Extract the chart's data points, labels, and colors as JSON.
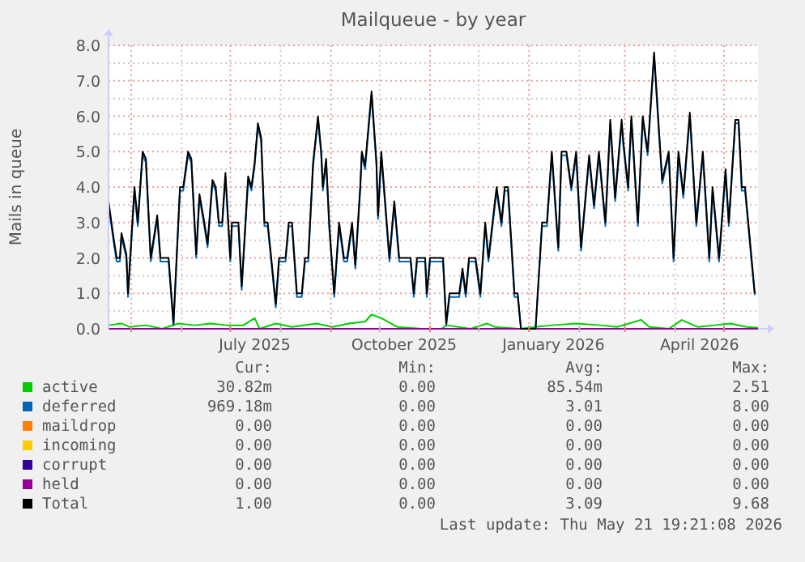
{
  "chart_data": {
    "type": "line",
    "title": "Mailqueue - by year",
    "ylabel": "Mails in queue",
    "xlim": [
      "2025-04-17",
      "2026-05-22"
    ],
    "xticks": [
      {
        "value": "2025-05-01",
        "label": null
      },
      {
        "value": "2025-06-01",
        "label": null
      },
      {
        "value": "2025-07-01",
        "label": null
      },
      {
        "value": "2025-07-16",
        "label": "July 2025"
      },
      {
        "value": "2025-08-01",
        "label": null
      },
      {
        "value": "2025-09-01",
        "label": null
      },
      {
        "value": "2025-10-01",
        "label": null
      },
      {
        "value": "2025-10-16",
        "label": "October 2025"
      },
      {
        "value": "2025-11-01",
        "label": null
      },
      {
        "value": "2025-12-01",
        "label": null
      },
      {
        "value": "2026-01-01",
        "label": null
      },
      {
        "value": "2026-01-16",
        "label": "January 2026"
      },
      {
        "value": "2026-02-01",
        "label": null
      },
      {
        "value": "2026-03-01",
        "label": null
      },
      {
        "value": "2026-04-01",
        "label": null
      },
      {
        "value": "2026-04-16",
        "label": "April 2026"
      },
      {
        "value": "2026-05-01",
        "label": null
      }
    ],
    "ylim": [
      0,
      8
    ],
    "yticks": [
      {
        "value": 0,
        "label": "0.0"
      },
      {
        "value": 1,
        "label": "1.0"
      },
      {
        "value": 2,
        "label": "2.0"
      },
      {
        "value": 3,
        "label": "3.0"
      },
      {
        "value": 4,
        "label": "4.0"
      },
      {
        "value": 5,
        "label": "5.0"
      },
      {
        "value": 6,
        "label": "6.0"
      },
      {
        "value": 7,
        "label": "7.0"
      },
      {
        "value": 8,
        "label": "8.0"
      }
    ],
    "grid": true,
    "legend": "bottom",
    "marker": "none",
    "line_style": "solid",
    "series": [
      {
        "name": "active",
        "color": "#00cc00",
        "x": [
          "2025-04-17",
          "2025-04-25",
          "2025-04-30",
          "2025-05-10",
          "2025-05-20",
          "2025-05-30",
          "2025-06-09",
          "2025-06-19",
          "2025-06-29",
          "2025-07-09",
          "2025-07-16",
          "2025-07-19",
          "2025-07-29",
          "2025-08-08",
          "2025-08-23",
          "2025-09-02",
          "2025-09-12",
          "2025-09-22",
          "2025-09-26",
          "2025-10-02",
          "2025-10-12",
          "2025-10-27",
          "2025-11-08",
          "2025-11-11",
          "2025-11-26",
          "2025-12-06",
          "2025-12-11",
          "2025-12-26",
          "2026-01-05",
          "2026-01-15",
          "2026-01-30",
          "2026-02-14",
          "2026-02-24",
          "2026-03-11",
          "2026-03-16",
          "2026-03-28",
          "2026-04-05",
          "2026-04-15",
          "2026-04-25",
          "2026-05-05",
          "2026-05-15",
          "2026-05-22"
        ],
        "values": [
          0.1,
          0.15,
          0.05,
          0.1,
          0,
          0.15,
          0.1,
          0.15,
          0.1,
          0.1,
          0.3,
          0,
          0.15,
          0.05,
          0.15,
          0.05,
          0.15,
          0.2,
          0.4,
          0.3,
          0.05,
          0,
          0,
          0.1,
          0,
          0.15,
          0.05,
          0,
          0.05,
          0.1,
          0.15,
          0.1,
          0.05,
          0.25,
          0.05,
          0,
          0.25,
          0.05,
          0.1,
          0.15,
          0.05,
          0.03
        ]
      },
      {
        "name": "deferred",
        "color": "#0066b3",
        "values": [
          3.5,
          2.5,
          1.9,
          1.9,
          2.6,
          2.0,
          0.9,
          3.9,
          2.9,
          4.9,
          4.7,
          1.9,
          3.1,
          1.9,
          1.9,
          0.1,
          3.9,
          3.9,
          4.9,
          4.7,
          2.0,
          3.7,
          2.9,
          2.3,
          4.1,
          3.9,
          2.9,
          2.9,
          4.3,
          1.9,
          2.9,
          2.9,
          1.1,
          4.2,
          3.9,
          4.6,
          5.7,
          5.3,
          2.9,
          2.9,
          2.0,
          0.6,
          1.9,
          1.9,
          2.9,
          2.9,
          0.9,
          0.9,
          1.9,
          1.9,
          4.6,
          5.9,
          4.9,
          3.9,
          4.7,
          2.8,
          0.9,
          2.9,
          1.9,
          1.9,
          2.9,
          1.7,
          3.9,
          4.9,
          4.5,
          6.6,
          4.6,
          3.1,
          4.9,
          3.7,
          1.9,
          3.5,
          1.9,
          1.9,
          0.9,
          1.9,
          1.9,
          0.9,
          1.9,
          1.9,
          0.1,
          0.9,
          0.9,
          1.6,
          0.9,
          1.9,
          1.9,
          0.9,
          2.9,
          1.9,
          3.9,
          2.9,
          3.9,
          3.9,
          0.9,
          0.9,
          0,
          0,
          2.9,
          2.9,
          4.9,
          2.2,
          4.9,
          4.9,
          3.9,
          4.9,
          2.2,
          4.8,
          3.4,
          4.9,
          2.9,
          5.8,
          3.6,
          5.8,
          5.2,
          3.9,
          5.9,
          2.9,
          5.9,
          4.9,
          7.7,
          5.5,
          4.1,
          4.9,
          1.9,
          4.9,
          3.7,
          6.0,
          2.9,
          4.9,
          1.9,
          3.9,
          1.9,
          4.4,
          2.9,
          5.8,
          5.8,
          3.9,
          3.9,
          1.9,
          0.95
        ]
      },
      {
        "name": "maildrop",
        "color": "#ff8000",
        "values": [
          null,
          null,
          null,
          null,
          null,
          null,
          null,
          null,
          null,
          null,
          null,
          null,
          null,
          null,
          null,
          null,
          null,
          null,
          null,
          null,
          null,
          null,
          null,
          null,
          null,
          null,
          null,
          null,
          null,
          null,
          null,
          null,
          null,
          null,
          null,
          null,
          null,
          null,
          null,
          null,
          null,
          null,
          null,
          null,
          null,
          null,
          null,
          null,
          null,
          null,
          null,
          null,
          null,
          null,
          null,
          null,
          null,
          null,
          null,
          null,
          null,
          null,
          null,
          null,
          null,
          null,
          null,
          null,
          null,
          null,
          null,
          null,
          null,
          null,
          null,
          null,
          null,
          null,
          null,
          null,
          null,
          null,
          null,
          null,
          null,
          null,
          null,
          null,
          null,
          null,
          null,
          null,
          null,
          null,
          null,
          null,
          null,
          null,
          null,
          null,
          null,
          null,
          null,
          null,
          null,
          null,
          null,
          null,
          null,
          null,
          null,
          null,
          null,
          null,
          null,
          null,
          null,
          null,
          null,
          null,
          null,
          null,
          null,
          null,
          null,
          null,
          null,
          null,
          null,
          null,
          null,
          null,
          null,
          null,
          null,
          null,
          null,
          null,
          null,
          null,
          null
        ]
      },
      {
        "name": "incoming",
        "color": "#ffcc00",
        "values": [
          null,
          null,
          null,
          null,
          null,
          null,
          null,
          null,
          null,
          null,
          null,
          null,
          null,
          null,
          null,
          null,
          null,
          null,
          null,
          null,
          null,
          null,
          null,
          null,
          null,
          null,
          null,
          null,
          null,
          null,
          null,
          null,
          null,
          null,
          null,
          null,
          null,
          null,
          null,
          null,
          null,
          null,
          null,
          null,
          null,
          null,
          null,
          null,
          null,
          null,
          null,
          null,
          null,
          null,
          null,
          null,
          null,
          null,
          null,
          null,
          null,
          null,
          null,
          null,
          null,
          null,
          null,
          null,
          null,
          null,
          null,
          null,
          null,
          null,
          null,
          null,
          null,
          null,
          null,
          null,
          null,
          null,
          null,
          null,
          null,
          null,
          null,
          null,
          null,
          null,
          null,
          null,
          null,
          null,
          null,
          null,
          null,
          null,
          null,
          null,
          null,
          null,
          null,
          null,
          null,
          null,
          null,
          null,
          null,
          null,
          null,
          null,
          null,
          null,
          null,
          null,
          null,
          null,
          null,
          null,
          null,
          null,
          null,
          null,
          null,
          null,
          null,
          null,
          null,
          null,
          null,
          null,
          null,
          null,
          null,
          null,
          null,
          null,
          null,
          null,
          null
        ]
      },
      {
        "name": "corrupt",
        "color": "#330099",
        "values": [
          null,
          null,
          null,
          null,
          null,
          null,
          null,
          null,
          null,
          null,
          null,
          null,
          null,
          null,
          null,
          null,
          null,
          null,
          null,
          null,
          null,
          null,
          null,
          null,
          null,
          null,
          null,
          null,
          null,
          null,
          null,
          null,
          null,
          null,
          null,
          null,
          null,
          null,
          null,
          null,
          null,
          null,
          null,
          null,
          null,
          null,
          null,
          null,
          null,
          null,
          null,
          null,
          null,
          null,
          null,
          null,
          null,
          null,
          null,
          null,
          null,
          null,
          null,
          null,
          null,
          null,
          null,
          null,
          null,
          null,
          null,
          null,
          null,
          null,
          null,
          null,
          null,
          null,
          null,
          null,
          null,
          null,
          null,
          null,
          null,
          null,
          null,
          null,
          null,
          null,
          null,
          null,
          null,
          null,
          null,
          null,
          null,
          null,
          null,
          null,
          null,
          null,
          null,
          null,
          null,
          null,
          null,
          null,
          null,
          null,
          null,
          null,
          null,
          null,
          null,
          null,
          null,
          null,
          null,
          null,
          null,
          null,
          null,
          null,
          null,
          null,
          null,
          null,
          null,
          null,
          null,
          null,
          null,
          null,
          null,
          null,
          null,
          null,
          null,
          null,
          null
        ]
      },
      {
        "name": "held",
        "color": "#990099",
        "x": [
          "2025-04-17",
          "2026-05-22"
        ],
        "values": [
          0,
          0
        ]
      },
      {
        "name": "Total",
        "color": "#000000",
        "values": [
          3.6,
          2.6,
          2.0,
          2.0,
          2.7,
          2.1,
          1.0,
          4.0,
          3.0,
          5.0,
          4.8,
          2.0,
          3.2,
          2.0,
          2.0,
          0.15,
          4.0,
          4.0,
          5.0,
          4.8,
          2.1,
          3.8,
          3.0,
          2.4,
          4.2,
          4.0,
          3.0,
          3.0,
          4.4,
          2.0,
          3.0,
          3.0,
          1.2,
          4.3,
          4.0,
          4.7,
          5.8,
          5.4,
          3.0,
          3.0,
          2.1,
          0.7,
          2.0,
          2.0,
          3.0,
          3.0,
          1.0,
          1.0,
          2.0,
          2.0,
          4.7,
          6.0,
          5.0,
          4.0,
          4.8,
          2.9,
          1.0,
          3.0,
          2.0,
          2.0,
          3.0,
          1.8,
          4.0,
          5.0,
          4.6,
          6.7,
          4.7,
          3.2,
          5.0,
          3.8,
          2.0,
          3.6,
          2.0,
          2.0,
          1.0,
          2.0,
          2.0,
          1.0,
          2.0,
          2.0,
          0.15,
          1.0,
          1.0,
          1.7,
          1.0,
          2.0,
          2.0,
          1.0,
          3.0,
          2.0,
          4.0,
          3.0,
          4.0,
          4.0,
          1.0,
          1.0,
          0,
          0,
          3.0,
          3.0,
          5.0,
          2.3,
          5.0,
          5.0,
          4.0,
          5.0,
          2.3,
          4.9,
          3.5,
          5.0,
          3.0,
          5.9,
          3.7,
          5.9,
          5.3,
          4.0,
          6.0,
          3.0,
          6.0,
          5.0,
          7.8,
          5.6,
          4.2,
          5.0,
          2.0,
          5.0,
          3.8,
          6.1,
          3.0,
          5.0,
          2.0,
          4.0,
          2.0,
          4.5,
          3.0,
          5.9,
          5.9,
          4.0,
          4.0,
          2.0,
          1.0
        ]
      }
    ],
    "x": [
      "2025-04-17",
      "2025-04-20",
      "2025-04-22",
      "2025-04-24",
      "2025-04-25",
      "2025-04-28",
      "2025-04-29",
      "2025-05-03",
      "2025-05-05",
      "2025-05-08",
      "2025-05-10",
      "2025-05-13",
      "2025-05-17",
      "2025-05-19",
      "2025-05-24",
      "2025-05-27",
      "2025-05-31",
      "2025-06-02",
      "2025-06-05",
      "2025-06-07",
      "2025-06-10",
      "2025-06-12",
      "2025-06-15",
      "2025-06-17",
      "2025-06-20",
      "2025-06-22",
      "2025-06-24",
      "2025-06-26",
      "2025-06-28",
      "2025-07-01",
      "2025-07-02",
      "2025-07-06",
      "2025-07-08",
      "2025-07-12",
      "2025-07-14",
      "2025-07-16",
      "2025-07-18",
      "2025-07-20",
      "2025-07-22",
      "2025-07-24",
      "2025-07-26",
      "2025-07-29",
      "2025-07-31",
      "2025-08-04",
      "2025-08-06",
      "2025-08-08",
      "2025-08-11",
      "2025-08-14",
      "2025-08-16",
      "2025-08-18",
      "2025-08-21",
      "2025-08-24",
      "2025-08-26",
      "2025-08-27",
      "2025-08-29",
      "2025-08-31",
      "2025-09-03",
      "2025-09-06",
      "2025-09-09",
      "2025-09-11",
      "2025-09-14",
      "2025-09-16",
      "2025-09-19",
      "2025-09-20",
      "2025-09-22",
      "2025-09-26",
      "2025-09-29",
      "2025-09-30",
      "2025-10-02",
      "2025-10-04",
      "2025-10-07",
      "2025-10-10",
      "2025-10-13",
      "2025-10-20",
      "2025-10-22",
      "2025-10-24",
      "2025-10-29",
      "2025-10-30",
      "2025-11-01",
      "2025-11-09",
      "2025-11-11",
      "2025-11-13",
      "2025-11-19",
      "2025-11-21",
      "2025-11-23",
      "2025-11-25",
      "2025-11-29",
      "2025-12-02",
      "2025-12-05",
      "2025-12-07",
      "2025-12-12",
      "2025-12-15",
      "2025-12-17",
      "2025-12-19",
      "2025-12-23",
      "2025-12-25",
      "2025-12-27",
      "2026-01-05",
      "2026-01-09",
      "2026-01-12",
      "2026-01-15",
      "2026-01-19",
      "2026-01-21",
      "2026-01-24",
      "2026-01-27",
      "2026-01-30",
      "2026-02-02",
      "2026-02-07",
      "2026-02-10",
      "2026-02-13",
      "2026-02-17",
      "2026-02-20",
      "2026-02-23",
      "2026-02-27",
      "2026-02-28",
      "2026-03-03",
      "2026-03-05",
      "2026-03-09",
      "2026-03-12",
      "2026-03-15",
      "2026-03-19",
      "2026-03-22",
      "2026-03-24",
      "2026-03-28",
      "2026-03-31",
      "2026-04-03",
      "2026-04-06",
      "2026-04-10",
      "2026-04-14",
      "2026-04-18",
      "2026-04-22",
      "2026-04-24",
      "2026-04-28",
      "2026-05-02",
      "2026-05-04",
      "2026-05-08",
      "2026-05-10",
      "2026-05-12",
      "2026-05-14",
      "2026-05-18",
      "2026-05-20"
    ],
    "annotations": [
      "Cur:",
      "Min:",
      "Avg:",
      "Max:",
      "30.82m",
      "0.00",
      "85.54m",
      "2.51",
      "969.18m",
      "0.00",
      "3.01",
      "8.00",
      "0.00",
      "0.00",
      "0.00",
      "0.00",
      "0.00",
      "0.00",
      "0.00",
      "0.00",
      "0.00",
      "0.00",
      "0.00",
      "0.00",
      "0.00",
      "0.00",
      "0.00",
      "0.00",
      "1.00",
      "0.00",
      "3.09",
      "9.68",
      "Last update: Thu May 21 19:21:08 2026"
    ]
  }
}
